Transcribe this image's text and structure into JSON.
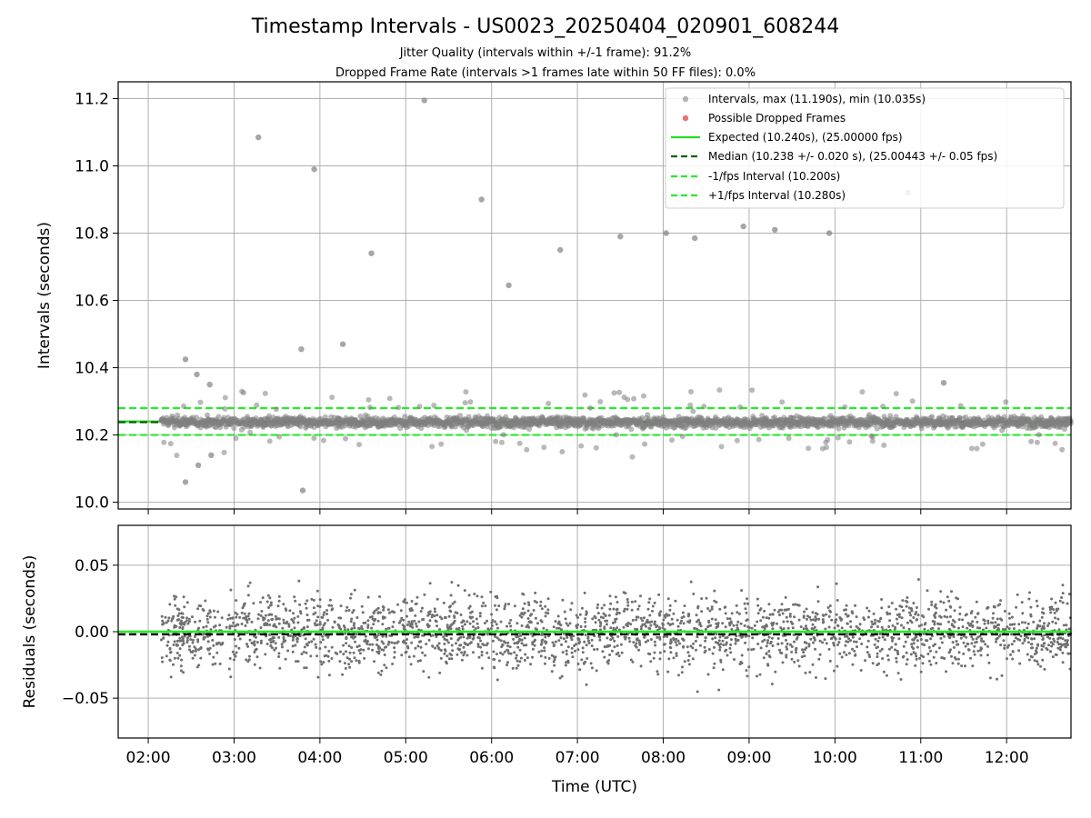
{
  "chart_data": [
    {
      "type": "scatter",
      "title": "Timestamp Intervals - US0023_20250404_020901_608244",
      "subtitle_lines": [
        "Jitter Quality (intervals within +/-1 frame): 91.2%",
        "Dropped Frame Rate (intervals >1 frames late within 50 FF files): 0.0%"
      ],
      "xlabel": "",
      "ylabel": "Intervals (seconds)",
      "xlim": [
        "01:39",
        "12:45"
      ],
      "ylim": [
        9.98,
        11.25
      ],
      "yticks": [
        "10.0",
        "10.2",
        "10.4",
        "10.6",
        "10.8",
        "11.0",
        "11.2"
      ],
      "xticks": [
        "02:00",
        "03:00",
        "04:00",
        "05:00",
        "06:00",
        "07:00",
        "08:00",
        "09:00",
        "10:00",
        "11:00",
        "12:00"
      ],
      "grid": true,
      "legend_position": "top-right",
      "series": [
        {
          "name": "Intervals, max (11.190s), min (10.035s)",
          "kind": "points",
          "color": "#808080",
          "time_range": [
            "02:09",
            "12:45"
          ],
          "typical_center": 10.238,
          "typical_spread": 0.02,
          "outliers": [
            {
              "t": "02:26",
              "v": 10.425
            },
            {
              "t": "02:26",
              "v": 10.06
            },
            {
              "t": "02:34",
              "v": 10.38
            },
            {
              "t": "02:35",
              "v": 10.11
            },
            {
              "t": "02:43",
              "v": 10.35
            },
            {
              "t": "02:44",
              "v": 10.14
            },
            {
              "t": "03:17",
              "v": 11.085
            },
            {
              "t": "03:47",
              "v": 10.455
            },
            {
              "t": "03:48",
              "v": 10.035
            },
            {
              "t": "03:56",
              "v": 10.99
            },
            {
              "t": "04:16",
              "v": 10.47
            },
            {
              "t": "04:36",
              "v": 10.74
            },
            {
              "t": "05:13",
              "v": 11.195
            },
            {
              "t": "05:53",
              "v": 10.9
            },
            {
              "t": "06:12",
              "v": 10.645
            },
            {
              "t": "06:48",
              "v": 10.75
            },
            {
              "t": "07:30",
              "v": 10.79
            },
            {
              "t": "08:02",
              "v": 10.8
            },
            {
              "t": "08:22",
              "v": 10.785
            },
            {
              "t": "08:56",
              "v": 10.82
            },
            {
              "t": "09:18",
              "v": 10.81
            },
            {
              "t": "09:56",
              "v": 10.8
            },
            {
              "t": "10:51",
              "v": 10.92
            },
            {
              "t": "11:16",
              "v": 10.355
            }
          ]
        },
        {
          "name": "Possible Dropped Frames",
          "kind": "points",
          "color": "#f06060",
          "points": []
        },
        {
          "name": "Expected (10.240s), (25.00000 fps)",
          "kind": "hline",
          "y": 10.24,
          "color": "#22dd22",
          "dash": "solid"
        },
        {
          "name": "Median (10.238 +/- 0.020 s), (25.00443 +/- 0.05 fps)",
          "kind": "hline",
          "y": 10.238,
          "color": "#006400",
          "dash": "dashed"
        },
        {
          "name": "-1/fps Interval (10.200s)",
          "kind": "hline",
          "y": 10.2,
          "color": "#22ee22",
          "dash": "dashed"
        },
        {
          "name": "+1/fps Interval (10.280s)",
          "kind": "hline",
          "y": 10.28,
          "color": "#22ee22",
          "dash": "dashed"
        }
      ]
    },
    {
      "type": "scatter",
      "title": "",
      "xlabel": "Time (UTC)",
      "ylabel": "Residuals (seconds)",
      "xlim": [
        "01:39",
        "12:45"
      ],
      "ylim": [
        -0.08,
        0.08
      ],
      "yticks": [
        "−0.05",
        "0.00",
        "0.05"
      ],
      "xticks": [
        "02:00",
        "03:00",
        "04:00",
        "05:00",
        "06:00",
        "07:00",
        "08:00",
        "09:00",
        "10:00",
        "11:00",
        "12:00"
      ],
      "grid": true,
      "series": [
        {
          "name": "",
          "kind": "points",
          "color": "#707070",
          "time_range": [
            "02:09",
            "12:45"
          ],
          "typical_center": 0.0,
          "typical_spread": 0.025,
          "clipped_at_ylim": true
        },
        {
          "name": "",
          "kind": "hline",
          "y": 0.0,
          "color": "#22ee22",
          "dash": "solid"
        },
        {
          "name": "",
          "kind": "hline",
          "y": -0.002,
          "color": "#000000",
          "dash": "dashed"
        }
      ]
    }
  ]
}
